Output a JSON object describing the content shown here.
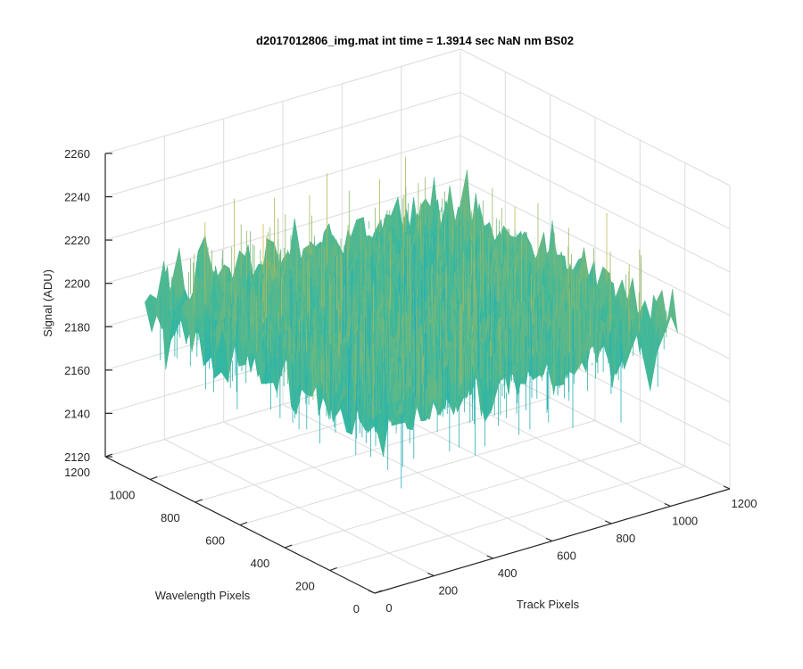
{
  "chart_data": {
    "type": "surface3d",
    "title": "d2017012806_img.mat int time = 1.3914 sec  NaN nm BS02",
    "xlabel": "Track Pixels",
    "ylabel": "Wavelength Pixels",
    "zlabel": "Signal (ADU)",
    "xlim": [
      0,
      1200
    ],
    "ylim": [
      0,
      1200
    ],
    "zlim": [
      2120,
      2260
    ],
    "x_ticks": [
      "0",
      "200",
      "400",
      "600",
      "800",
      "1000",
      "1200"
    ],
    "y_ticks": [
      "0",
      "200",
      "400",
      "600",
      "800",
      "1000",
      "1200"
    ],
    "z_ticks": [
      "2120",
      "2140",
      "2160",
      "2180",
      "2200",
      "2220",
      "2240",
      "2260"
    ],
    "data_extent": {
      "x": [
        0,
        1024
      ],
      "y": [
        0,
        1024
      ]
    },
    "signal_mean": 2200,
    "signal_range": [
      2130,
      2255
    ],
    "grid": true,
    "colormap": "parula",
    "colors": {
      "low": "#0f9fd8",
      "mid": "#35b8a0",
      "high": "#e6b93a",
      "grid": "#dcdcdc",
      "axis": "#262626"
    }
  }
}
